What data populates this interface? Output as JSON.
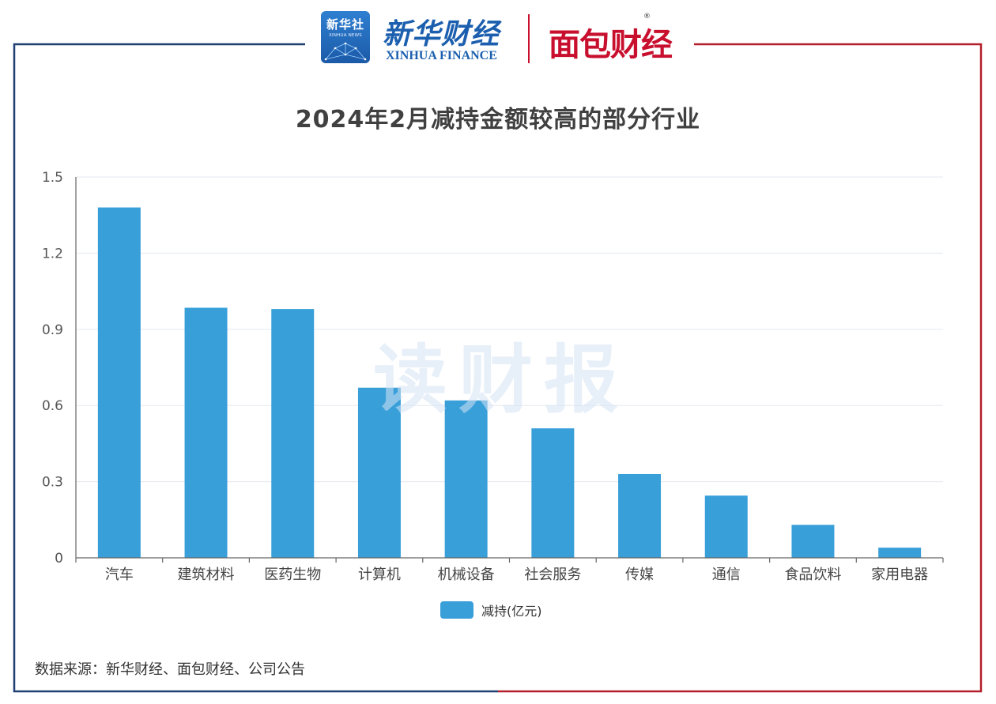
{
  "logos": {
    "xinhua_she_cn": "新华社",
    "xinhua_she_en": "XINHUA NEWS",
    "xinhua_finance_cn": "新华财经",
    "xinhua_finance_en": "XINHUA FINANCE",
    "mianbao_cn": "面包财经",
    "registered_mark": "®"
  },
  "watermark": "读财报",
  "colors": {
    "bar": "#399fd9",
    "frame_left": "#1f3f73",
    "frame_right": "#b21e2b",
    "grid": "#e3e8f0",
    "axis": "#666666",
    "brand_blue": "#1b5fae",
    "brand_red": "#c8102e"
  },
  "chart_data": {
    "type": "bar",
    "title": "2024年2月减持金额较高的部分行业",
    "categories": [
      "汽车",
      "建筑材料",
      "医药生物",
      "计算机",
      "机械设备",
      "社会服务",
      "传媒",
      "通信",
      "食品饮料",
      "家用电器"
    ],
    "series": [
      {
        "name": "减持(亿元)",
        "values": [
          1.38,
          0.985,
          0.98,
          0.67,
          0.62,
          0.51,
          0.33,
          0.245,
          0.13,
          0.04
        ]
      }
    ],
    "yticks": [
      "0",
      "0.3",
      "0.6",
      "0.9",
      "1.2",
      "1.5"
    ],
    "ylim": [
      0,
      1.5
    ],
    "grid": true,
    "legend": "bottom-center"
  },
  "source": "数据来源：新华财经、面包财经、公司公告"
}
